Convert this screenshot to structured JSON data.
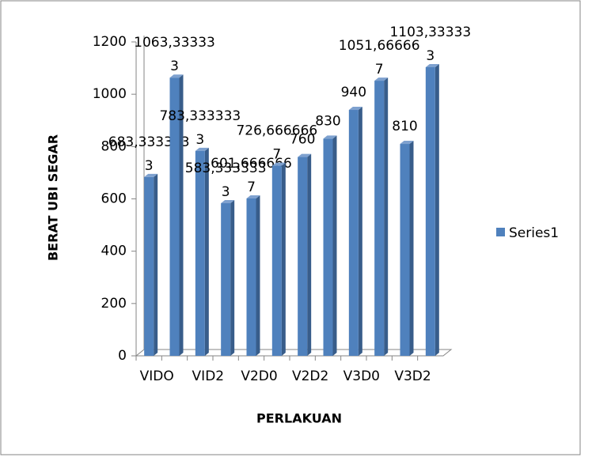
{
  "chart_data": {
    "type": "bar",
    "y_label": "BERAT UBI SEGAR",
    "x_label": "PERLAKUAN",
    "categories": [
      "VIDO",
      null,
      "VID2",
      null,
      "V2D0",
      null,
      "V2D2",
      null,
      "V3D0",
      null,
      "V3D2",
      null
    ],
    "series": [
      {
        "name": "Series1",
        "color": "#4f81bd",
        "values": [
          683.3333333,
          1063.333333,
          783.3333333,
          583.3333333,
          601.6666667,
          726.6666667,
          760,
          830,
          940,
          1051.666667,
          810,
          1103.333333
        ],
        "value_labels": [
          "683,3333333",
          "1063,333333",
          "783,3333333",
          "583,3333333",
          "601,6666667",
          "726,6666667",
          "760",
          "830",
          "940",
          "1051,666667",
          "810",
          "1103,333333"
        ]
      }
    ],
    "ylim": [
      0,
      1200
    ],
    "yticks": [
      0,
      200,
      400,
      600,
      800,
      1000,
      1200
    ],
    "legend": "right"
  }
}
